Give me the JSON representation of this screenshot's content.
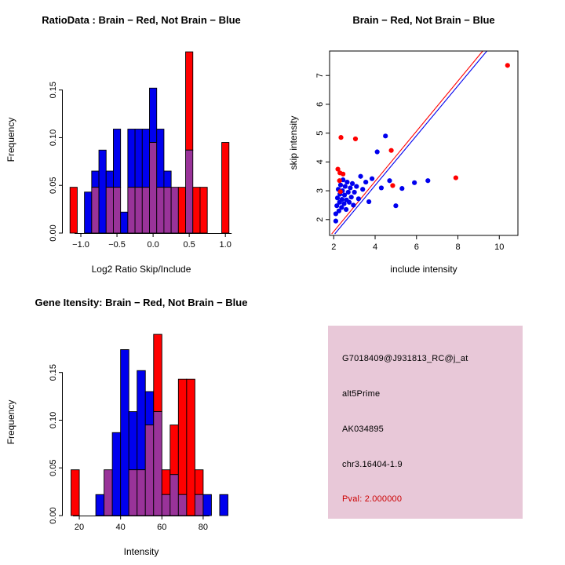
{
  "colors": {
    "red": "#FF0000",
    "blue": "#0000EE",
    "purple": "#993399",
    "axis": "#000000",
    "info_bg": "#E8C8D8",
    "pval_red": "#CC0000"
  },
  "chart_data": [
    {
      "id": "ratio_hist",
      "type": "bar",
      "title": "RatioData : Brain − Red, Not Brain − Blue",
      "xlabel": "Log2 Ratio Skip/Include",
      "ylabel": "Frequency",
      "xlim": [
        -1.25,
        1.15
      ],
      "ylim": [
        0,
        0.195
      ],
      "xticks": [
        -1.0,
        -0.5,
        0.0,
        0.5,
        1.0
      ],
      "xtick_labels": [
        "−1.0",
        "−0.5",
        "0.0",
        "0.5",
        "1.0"
      ],
      "yticks": [
        0.0,
        0.05,
        0.1,
        0.15
      ],
      "ytick_labels": [
        "0.00",
        "0.05",
        "0.10",
        "0.15"
      ],
      "bin_width": 0.1,
      "legend_note": "red = Brain frequency, blue = Not Brain frequency, purple = overlap",
      "bins": [
        {
          "x": -1.15,
          "blue": 0,
          "red": 0.048
        },
        {
          "x": -0.95,
          "blue": 0.043,
          "red": 0
        },
        {
          "x": -0.85,
          "blue": 0.065,
          "red": 0.048
        },
        {
          "x": -0.75,
          "blue": 0.087,
          "red": 0
        },
        {
          "x": -0.65,
          "blue": 0.065,
          "red": 0.048
        },
        {
          "x": -0.55,
          "blue": 0.109,
          "red": 0.048
        },
        {
          "x": -0.45,
          "blue": 0.022,
          "red": 0
        },
        {
          "x": -0.35,
          "blue": 0.109,
          "red": 0.048
        },
        {
          "x": -0.25,
          "blue": 0.109,
          "red": 0.048
        },
        {
          "x": -0.15,
          "blue": 0.109,
          "red": 0.048
        },
        {
          "x": -0.05,
          "blue": 0.152,
          "red": 0.095
        },
        {
          "x": 0.05,
          "blue": 0.109,
          "red": 0.048
        },
        {
          "x": 0.15,
          "blue": 0.065,
          "red": 0.048
        },
        {
          "x": 0.25,
          "blue": 0.048,
          "red": 0.048
        },
        {
          "x": 0.35,
          "blue": 0,
          "red": 0.048
        },
        {
          "x": 0.45,
          "blue": 0.087,
          "red": 0.19
        },
        {
          "x": 0.55,
          "blue": 0,
          "red": 0.048
        },
        {
          "x": 0.65,
          "blue": 0,
          "red": 0.048
        },
        {
          "x": 0.95,
          "blue": 0,
          "red": 0.095
        }
      ]
    },
    {
      "id": "scatter",
      "type": "scatter",
      "title": "Brain − Red, Not Brain − Blue",
      "xlabel": "include intensity",
      "ylabel": "skip intensity",
      "xlim": [
        1.8,
        10.9
      ],
      "ylim": [
        1.45,
        7.85
      ],
      "xticks": [
        2,
        4,
        6,
        8,
        10
      ],
      "xtick_labels": [
        "2",
        "4",
        "6",
        "8",
        "10"
      ],
      "yticks": [
        2,
        3,
        4,
        5,
        6,
        7
      ],
      "ytick_labels": [
        "2",
        "3",
        "4",
        "5",
        "6",
        "7"
      ],
      "red_points": [
        [
          2.35,
          4.85
        ],
        [
          3.05,
          4.8
        ],
        [
          2.2,
          3.75
        ],
        [
          2.3,
          3.62
        ],
        [
          2.45,
          3.58
        ],
        [
          2.28,
          3.35
        ],
        [
          2.32,
          2.97
        ],
        [
          4.78,
          4.4
        ],
        [
          4.85,
          3.18
        ],
        [
          7.9,
          3.45
        ],
        [
          10.4,
          7.35
        ]
      ],
      "blue_points": [
        [
          2.1,
          1.95
        ],
        [
          2.1,
          2.2
        ],
        [
          2.15,
          2.48
        ],
        [
          2.18,
          2.75
        ],
        [
          2.22,
          3.05
        ],
        [
          2.25,
          2.3
        ],
        [
          2.28,
          2.6
        ],
        [
          2.3,
          2.88
        ],
        [
          2.33,
          3.2
        ],
        [
          2.38,
          2.42
        ],
        [
          2.4,
          2.7
        ],
        [
          2.42,
          3.0
        ],
        [
          2.45,
          3.38
        ],
        [
          2.5,
          2.55
        ],
        [
          2.52,
          2.85
        ],
        [
          2.55,
          3.15
        ],
        [
          2.6,
          2.35
        ],
        [
          2.62,
          2.68
        ],
        [
          2.65,
          3.3
        ],
        [
          2.7,
          2.95
        ],
        [
          2.75,
          2.6
        ],
        [
          2.8,
          3.1
        ],
        [
          2.85,
          2.78
        ],
        [
          2.9,
          3.25
        ],
        [
          2.95,
          2.5
        ],
        [
          3.0,
          2.95
        ],
        [
          3.1,
          3.15
        ],
        [
          3.2,
          2.72
        ],
        [
          3.3,
          3.5
        ],
        [
          3.4,
          3.05
        ],
        [
          3.55,
          3.3
        ],
        [
          3.7,
          2.62
        ],
        [
          3.85,
          3.42
        ],
        [
          4.1,
          4.35
        ],
        [
          4.3,
          3.1
        ],
        [
          4.5,
          4.9
        ],
        [
          4.7,
          3.35
        ],
        [
          5.0,
          2.48
        ],
        [
          5.3,
          3.08
        ],
        [
          5.9,
          3.28
        ],
        [
          6.55,
          3.35
        ]
      ],
      "lines": [
        {
          "color": "red",
          "x1": 1.9,
          "y1": 1.5,
          "x2": 9.2,
          "y2": 7.85
        },
        {
          "color": "blue",
          "x1": 2.05,
          "y1": 1.5,
          "x2": 9.4,
          "y2": 7.85
        }
      ]
    },
    {
      "id": "gene_hist",
      "type": "bar",
      "title": "Gene Itensity: Brain − Red, Not Brain − Blue",
      "xlabel": "Intensity",
      "ylabel": "Frequency",
      "xlim": [
        12,
        96
      ],
      "ylim": [
        0,
        0.195
      ],
      "xticks": [
        20,
        40,
        60,
        80
      ],
      "xtick_labels": [
        "20",
        "40",
        "60",
        "80"
      ],
      "yticks": [
        0.0,
        0.05,
        0.1,
        0.15
      ],
      "ytick_labels": [
        "0.00",
        "0.05",
        "0.10",
        "0.15"
      ],
      "bin_width": 4,
      "legend_note": "red = Brain frequency, blue = Not Brain frequency, purple = overlap",
      "bins": [
        {
          "x": 16,
          "blue": 0,
          "red": 0.048
        },
        {
          "x": 28,
          "blue": 0.022,
          "red": 0
        },
        {
          "x": 32,
          "blue": 0.048,
          "red": 0.048
        },
        {
          "x": 36,
          "blue": 0.087,
          "red": 0
        },
        {
          "x": 40,
          "blue": 0.174,
          "red": 0
        },
        {
          "x": 44,
          "blue": 0.109,
          "red": 0.048
        },
        {
          "x": 48,
          "blue": 0.152,
          "red": 0.048
        },
        {
          "x": 52,
          "blue": 0.13,
          "red": 0.095
        },
        {
          "x": 56,
          "blue": 0.109,
          "red": 0.19
        },
        {
          "x": 60,
          "blue": 0.022,
          "red": 0.048
        },
        {
          "x": 64,
          "blue": 0.043,
          "red": 0.095
        },
        {
          "x": 68,
          "blue": 0.022,
          "red": 0.143
        },
        {
          "x": 72,
          "blue": 0,
          "red": 0.143
        },
        {
          "x": 76,
          "blue": 0.022,
          "red": 0.048
        },
        {
          "x": 80,
          "blue": 0.022,
          "red": 0
        },
        {
          "x": 88,
          "blue": 0.022,
          "red": 0
        }
      ]
    },
    {
      "id": "info",
      "type": "table",
      "lines": [
        "G7018409@J931813_RC@j_at",
        "alt5Prime",
        "AK034895",
        "chr3.16404-1.9"
      ],
      "pval": "Pval: 2.000000"
    }
  ]
}
